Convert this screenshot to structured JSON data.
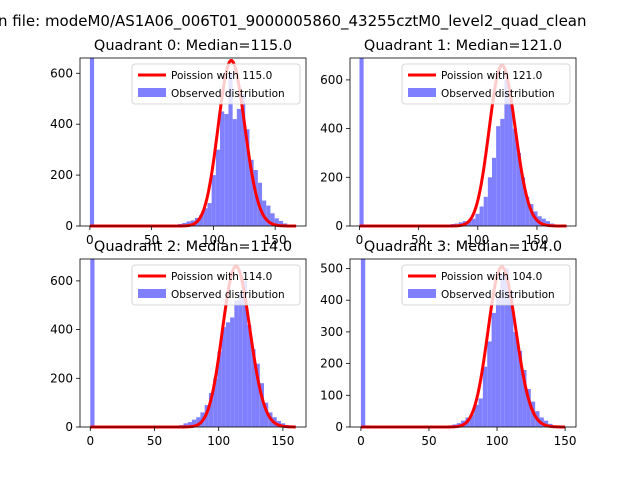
{
  "figure": {
    "suptitle": "n file: modeM0/AS1A06_006T01_9000005860_43255cztM0_level2_quad_clean"
  },
  "colors": {
    "bars": "#8080ff",
    "poisson": "#ff0000"
  },
  "chart_data": [
    {
      "type": "bar",
      "title": "Quadrant 0: Median=115.0",
      "xlim": [
        -8,
        175
      ],
      "ylim": [
        0,
        660
      ],
      "xticks": [
        0,
        50,
        100,
        150
      ],
      "yticks": [
        0,
        200,
        400,
        600
      ],
      "bin_width": 3.4,
      "bins": [
        {
          "x": 0,
          "y": 660
        },
        {
          "x": 3.4,
          "y": 5
        },
        {
          "x": 6.8,
          "y": 3
        },
        {
          "x": 71.4,
          "y": 8
        },
        {
          "x": 74.8,
          "y": 12
        },
        {
          "x": 78.2,
          "y": 18
        },
        {
          "x": 81.6,
          "y": 22
        },
        {
          "x": 85,
          "y": 32
        },
        {
          "x": 88.4,
          "y": 42
        },
        {
          "x": 91.8,
          "y": 70
        },
        {
          "x": 95.2,
          "y": 90
        },
        {
          "x": 98.6,
          "y": 200
        },
        {
          "x": 102,
          "y": 300
        },
        {
          "x": 105.4,
          "y": 450
        },
        {
          "x": 108.8,
          "y": 440
        },
        {
          "x": 112.2,
          "y": 600
        },
        {
          "x": 115.6,
          "y": 420
        },
        {
          "x": 119,
          "y": 460
        },
        {
          "x": 122.4,
          "y": 520
        },
        {
          "x": 125.8,
          "y": 380
        },
        {
          "x": 129.2,
          "y": 260
        },
        {
          "x": 132.6,
          "y": 220
        },
        {
          "x": 136,
          "y": 170
        },
        {
          "x": 139.4,
          "y": 100
        },
        {
          "x": 142.8,
          "y": 80
        },
        {
          "x": 146.2,
          "y": 50
        },
        {
          "x": 149.6,
          "y": 30
        },
        {
          "x": 153,
          "y": 20
        },
        {
          "x": 156.4,
          "y": 10
        },
        {
          "x": 159.8,
          "y": 5
        }
      ],
      "poisson": {
        "mean": 115.0,
        "scale": 650,
        "x_range": [
          0,
          167
        ]
      },
      "legend": {
        "placement": "upper-right",
        "entries": [
          "Poission with 115.0",
          "Observed distribution"
        ]
      }
    },
    {
      "type": "bar",
      "title": "Quadrant 1: Median=121.0",
      "xlim": [
        -8,
        183
      ],
      "ylim": [
        0,
        690
      ],
      "xticks": [
        0,
        50,
        100,
        150
      ],
      "yticks": [
        0,
        200,
        400,
        600
      ],
      "bin_width": 3.5,
      "bins": [
        {
          "x": 0,
          "y": 690
        },
        {
          "x": 3.5,
          "y": 5
        },
        {
          "x": 7,
          "y": 3
        },
        {
          "x": 73.5,
          "y": 5
        },
        {
          "x": 77,
          "y": 8
        },
        {
          "x": 80.5,
          "y": 10
        },
        {
          "x": 84,
          "y": 15
        },
        {
          "x": 87.5,
          "y": 20
        },
        {
          "x": 91,
          "y": 20
        },
        {
          "x": 94.5,
          "y": 30
        },
        {
          "x": 98,
          "y": 50
        },
        {
          "x": 101.5,
          "y": 80
        },
        {
          "x": 105,
          "y": 120
        },
        {
          "x": 108.5,
          "y": 200
        },
        {
          "x": 112,
          "y": 280
        },
        {
          "x": 115.5,
          "y": 410
        },
        {
          "x": 119,
          "y": 440
        },
        {
          "x": 122.5,
          "y": 600
        },
        {
          "x": 126,
          "y": 520
        },
        {
          "x": 129.5,
          "y": 400
        },
        {
          "x": 133,
          "y": 300
        },
        {
          "x": 136.5,
          "y": 200
        },
        {
          "x": 140,
          "y": 120
        },
        {
          "x": 143.5,
          "y": 90
        },
        {
          "x": 147,
          "y": 60
        },
        {
          "x": 150.5,
          "y": 40
        },
        {
          "x": 154,
          "y": 30
        },
        {
          "x": 157.5,
          "y": 20
        },
        {
          "x": 161,
          "y": 10
        },
        {
          "x": 164.5,
          "y": 5
        }
      ],
      "poisson": {
        "mean": 121.0,
        "scale": 660,
        "x_range": [
          0,
          175
        ]
      },
      "legend": {
        "placement": "upper-right",
        "entries": [
          "Poission with 121.0",
          "Observed distribution"
        ]
      }
    },
    {
      "type": "bar",
      "title": "Quadrant 2: Median=114.0",
      "xlim": [
        -8,
        168
      ],
      "ylim": [
        0,
        690
      ],
      "xticks": [
        0,
        50,
        100,
        150
      ],
      "yticks": [
        0,
        200,
        400,
        600
      ],
      "bin_width": 3.3,
      "bins": [
        {
          "x": 0,
          "y": 690
        },
        {
          "x": 3.3,
          "y": 5
        },
        {
          "x": 6.6,
          "y": 3
        },
        {
          "x": 69.3,
          "y": 8
        },
        {
          "x": 72.6,
          "y": 15
        },
        {
          "x": 75.9,
          "y": 20
        },
        {
          "x": 79.2,
          "y": 30
        },
        {
          "x": 82.5,
          "y": 40
        },
        {
          "x": 85.8,
          "y": 60
        },
        {
          "x": 89.1,
          "y": 90
        },
        {
          "x": 92.4,
          "y": 140
        },
        {
          "x": 95.7,
          "y": 200
        },
        {
          "x": 99,
          "y": 310
        },
        {
          "x": 102.3,
          "y": 410
        },
        {
          "x": 105.6,
          "y": 430
        },
        {
          "x": 108.9,
          "y": 450
        },
        {
          "x": 112.2,
          "y": 520
        },
        {
          "x": 115.5,
          "y": 550
        },
        {
          "x": 118.8,
          "y": 600
        },
        {
          "x": 122.1,
          "y": 420
        },
        {
          "x": 125.4,
          "y": 320
        },
        {
          "x": 128.7,
          "y": 260
        },
        {
          "x": 132,
          "y": 180
        },
        {
          "x": 135.3,
          "y": 100
        },
        {
          "x": 138.6,
          "y": 60
        },
        {
          "x": 141.9,
          "y": 40
        },
        {
          "x": 145.2,
          "y": 25
        },
        {
          "x": 148.5,
          "y": 15
        },
        {
          "x": 151.8,
          "y": 8
        },
        {
          "x": 155.1,
          "y": 4
        }
      ],
      "poisson": {
        "mean": 114.0,
        "scale": 660,
        "x_range": [
          0,
          160
        ]
      },
      "legend": {
        "placement": "upper-right",
        "entries": [
          "Poission with 114.0",
          "Observed distribution"
        ]
      }
    },
    {
      "type": "bar",
      "title": "Quadrant 3: Median=104.0",
      "xlim": [
        -8,
        158
      ],
      "ylim": [
        0,
        530
      ],
      "xticks": [
        0,
        50,
        100,
        150
      ],
      "yticks": [
        0,
        100,
        200,
        300,
        400,
        500
      ],
      "bin_width": 3.2,
      "bins": [
        {
          "x": 0,
          "y": 530
        },
        {
          "x": 3.2,
          "y": 5
        },
        {
          "x": 6.4,
          "y": 3
        },
        {
          "x": 64,
          "y": 5
        },
        {
          "x": 67.2,
          "y": 8
        },
        {
          "x": 70.4,
          "y": 12
        },
        {
          "x": 73.6,
          "y": 20
        },
        {
          "x": 76.8,
          "y": 30
        },
        {
          "x": 80,
          "y": 40
        },
        {
          "x": 83.2,
          "y": 70
        },
        {
          "x": 86.4,
          "y": 90
        },
        {
          "x": 89.6,
          "y": 190
        },
        {
          "x": 92.8,
          "y": 270
        },
        {
          "x": 96,
          "y": 360
        },
        {
          "x": 99.2,
          "y": 410
        },
        {
          "x": 102.4,
          "y": 480
        },
        {
          "x": 105.6,
          "y": 500
        },
        {
          "x": 108.8,
          "y": 430
        },
        {
          "x": 112,
          "y": 300
        },
        {
          "x": 115.2,
          "y": 240
        },
        {
          "x": 118.4,
          "y": 180
        },
        {
          "x": 121.6,
          "y": 120
        },
        {
          "x": 124.8,
          "y": 80
        },
        {
          "x": 128,
          "y": 50
        },
        {
          "x": 131.2,
          "y": 30
        },
        {
          "x": 134.4,
          "y": 20
        },
        {
          "x": 137.6,
          "y": 10
        },
        {
          "x": 140.8,
          "y": 5
        },
        {
          "x": 144,
          "y": 3
        }
      ],
      "poisson": {
        "mean": 104.0,
        "scale": 505,
        "x_range": [
          0,
          150
        ]
      },
      "legend": {
        "placement": "upper-right",
        "entries": [
          "Poission with 104.0",
          "Observed distribution"
        ]
      }
    }
  ]
}
